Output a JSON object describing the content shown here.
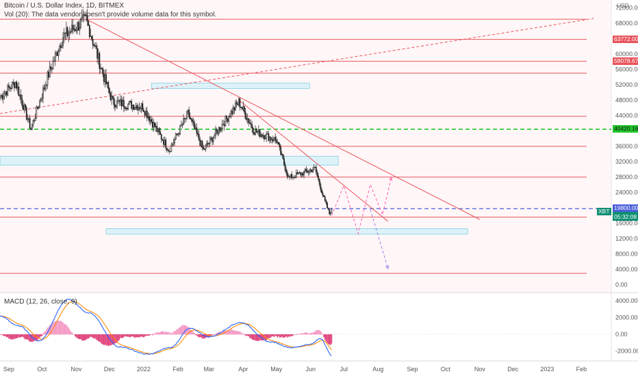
{
  "header": {
    "title": "Bitcoin / U.S. Dollar Index, 1D, BITMEX",
    "volume_note": "Vol (20): The data vendor doesn't provide volume data for this symbol.",
    "currency": "USD",
    "macd_title": "MACD (12, 26, close, 9)"
  },
  "colors": {
    "resistance": "#e8535b",
    "zone_fill": "#d7f1f8",
    "zone_stroke": "#7fd0e4",
    "green_level": "#22c62b",
    "blue_level": "#4a5fd9",
    "candle_up": "#1a1a1a",
    "candle_down": "#222222",
    "macd_line": "#2962ff",
    "signal_line": "#ff8a00",
    "hist_pos": "#f49bc5",
    "hist_neg": "#e0467e",
    "projection": "#ff60b4",
    "projection_down": "#9a7ce3"
  },
  "chart_data": {
    "type": "candlestick",
    "symbol": "Bitcoin / U.S. Dollar Index",
    "timeframe": "1D",
    "exchange": "BITMEX",
    "x_start": "2021-08-24",
    "x_end": "2023-02-28",
    "ylim": [
      -2000,
      74000
    ],
    "x_ticks": [
      "Sep",
      "Oct",
      "Nov",
      "Dec",
      "2022",
      "Feb",
      "Mar",
      "Apr",
      "May",
      "Jun",
      "Jul",
      "Aug",
      "Sep",
      "Oct",
      "Nov",
      "Dec",
      "2023",
      "Feb"
    ],
    "y_ticks": [
      "0.00",
      "4000.00",
      "8000.00",
      "12000.00",
      "16000.00",
      "24000.00",
      "28000.00",
      "32000.00",
      "36000.00",
      "44000.00",
      "48000.00",
      "52000.00",
      "56000.00",
      "60000.00",
      "68000.00",
      "72000.00"
    ],
    "price_anchors": [
      [
        "2021-08-24",
        48800
      ],
      [
        "2021-09-07",
        52700
      ],
      [
        "2021-09-21",
        40500
      ],
      [
        "2021-10-06",
        54000
      ],
      [
        "2021-10-20",
        64500
      ],
      [
        "2021-11-10",
        69000
      ],
      [
        "2021-11-26",
        54000
      ],
      [
        "2021-12-04",
        47500
      ],
      [
        "2021-12-31",
        46300
      ],
      [
        "2022-01-24",
        35000
      ],
      [
        "2022-02-10",
        44500
      ],
      [
        "2022-02-24",
        35000
      ],
      [
        "2022-03-28",
        47500
      ],
      [
        "2022-04-11",
        40000
      ],
      [
        "2022-05-01",
        37600
      ],
      [
        "2022-05-12",
        27800
      ],
      [
        "2022-06-05",
        30200
      ],
      [
        "2022-06-13",
        22400
      ],
      [
        "2022-06-18",
        18500
      ],
      [
        "2022-06-20",
        19583
      ]
    ],
    "horizontal_levels": [
      69000,
      63772,
      58078.67,
      55000,
      43800,
      36000,
      28000,
      17600,
      3000
    ],
    "level_labels": [
      "63772.00",
      "58078.67",
      "40420.16",
      "19800.00",
      "19583.42"
    ],
    "green_dashed_level": 40420.16,
    "blue_dashed_level": 19800,
    "symbol_tag": "XBT",
    "current_price": 19583.42,
    "countdown": "05:32:08",
    "zones": [
      {
        "from": "2022-01-08",
        "to": "2022-05-31",
        "low": 51000,
        "high": 52400
      },
      {
        "from": "2021-08-24",
        "to": "2022-06-26",
        "low": 31100,
        "high": 33400
      },
      {
        "from": "2021-11-28",
        "to": "2022-10-21",
        "low": 13200,
        "high": 14600
      }
    ],
    "trendlines": [
      {
        "points": [
          [
            "2021-11-10",
            69000
          ],
          [
            "2022-11-01",
            17000
          ]
        ],
        "style": "solid"
      },
      {
        "points": [
          [
            "2022-03-29",
            47800
          ],
          [
            "2022-08-10",
            16500
          ]
        ],
        "style": "solid"
      },
      {
        "points": [
          [
            "2021-08-24",
            44500
          ],
          [
            "2023-02-12",
            69200
          ]
        ],
        "style": "dashed"
      }
    ],
    "projections": [
      {
        "points": [
          [
            "2022-06-20",
            18000
          ],
          [
            "2022-07-01",
            25800
          ],
          [
            "2022-07-14",
            13300
          ],
          [
            "2022-07-25",
            26100
          ],
          [
            "2022-08-05",
            18200
          ],
          [
            "2022-08-13",
            27900
          ]
        ]
      },
      {
        "points": [
          [
            "2022-07-25",
            19600
          ],
          [
            "2022-08-10",
            4200
          ]
        ]
      }
    ],
    "macd": {
      "title": "MACD (12, 26, close, 9)",
      "ylim": [
        -3200,
        5000
      ],
      "y_ticks": [
        "4000.00",
        "2000.00",
        "0.00",
        "-2000.00"
      ],
      "anchors": [
        [
          "2021-08-24",
          2200
        ],
        [
          "2021-09-10",
          1000
        ],
        [
          "2021-09-28",
          -800
        ],
        [
          "2021-10-25",
          4200
        ],
        [
          "2021-11-12",
          2600
        ],
        [
          "2021-12-10",
          -1500
        ],
        [
          "2022-01-05",
          -2400
        ],
        [
          "2022-01-25",
          -1600
        ],
        [
          "2022-02-12",
          700
        ],
        [
          "2022-03-01",
          -300
        ],
        [
          "2022-03-30",
          1400
        ],
        [
          "2022-04-25",
          -900
        ],
        [
          "2022-05-15",
          -1600
        ],
        [
          "2022-06-01",
          -1200
        ],
        [
          "2022-06-10",
          -500
        ],
        [
          "2022-06-20",
          -2500
        ]
      ]
    }
  }
}
